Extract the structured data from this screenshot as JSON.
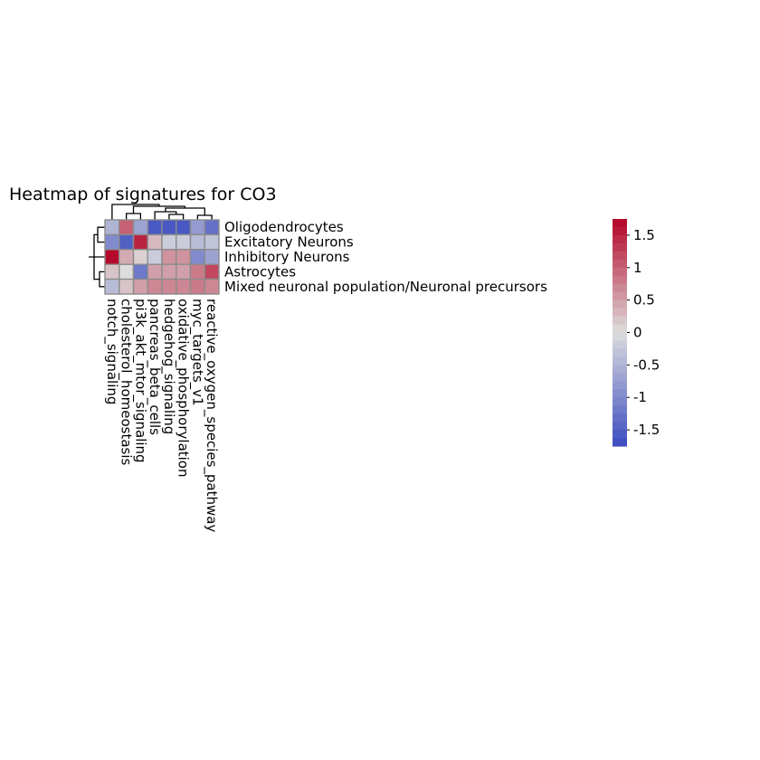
{
  "chart_data": {
    "type": "heatmap",
    "title": "Heatmap of signatures for CO3",
    "rows": [
      "Oligodendrocytes",
      "Excitatory Neurons",
      "Inhibitory Neurons",
      "Astrocytes",
      "Mixed neuronal population/Neuronal precursors"
    ],
    "columns": [
      "notch_signaling",
      "cholesterol_homeostasis",
      "pi3k_akt_mtor_signaling",
      "pancreas_beta_cells",
      "hedgehog_signaling",
      "oxidative_phosphorylation",
      "myc_targets_v1",
      "reactive_oxygen_species_pathway"
    ],
    "values": [
      [
        -0.5,
        1.0,
        -0.7,
        -1.6,
        -1.6,
        -1.6,
        -0.8,
        -1.3
      ],
      [
        -1.0,
        -1.5,
        1.5,
        0.3,
        -0.2,
        -0.2,
        -0.4,
        -0.3
      ],
      [
        1.7,
        0.4,
        0.1,
        -0.2,
        0.6,
        0.6,
        -1.0,
        -0.7
      ],
      [
        0.2,
        0.0,
        -1.2,
        0.5,
        0.5,
        0.5,
        0.8,
        1.2
      ],
      [
        -0.4,
        0.2,
        0.5,
        0.7,
        0.7,
        0.7,
        0.8,
        0.7
      ]
    ],
    "colorbar": {
      "min": -1.75,
      "max": 1.75,
      "ticks": [
        1.5,
        1,
        0.5,
        0,
        -0.5,
        -1,
        -1.5
      ],
      "tick_labels": [
        "1.5",
        "1",
        "0.5",
        "0",
        "-0.5",
        "-1",
        "-1.5"
      ],
      "colormap": "coolwarm",
      "color_low": "#3b4cc0",
      "color_mid": "#dddddd",
      "color_high": "#b40426"
    },
    "row_dendrogram": true,
    "column_dendrogram": true,
    "grid": false,
    "legend_position": "right"
  }
}
